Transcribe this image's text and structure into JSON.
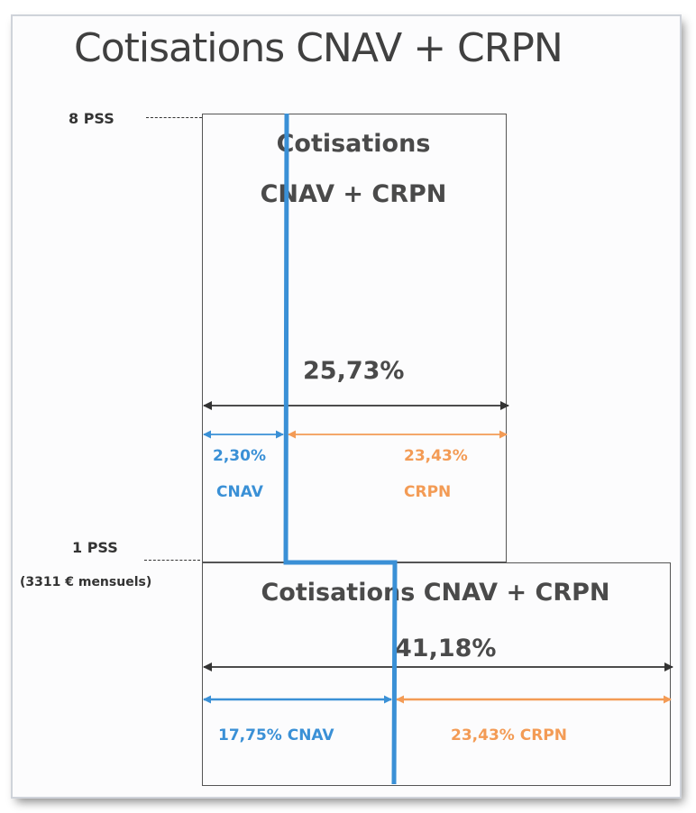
{
  "title": "Cotisations CNAV + CRPN",
  "colors": {
    "cnav": "#3a90d6",
    "crpn": "#f39b55",
    "total": "#333333"
  },
  "levels": {
    "top": {
      "label": "8 PSS"
    },
    "mid": {
      "label": "1 PSS",
      "sublabel": "(3311 € mensuels)"
    }
  },
  "upper_band": {
    "title_line1": "Cotisations",
    "title_line2": "CNAV + CRPN",
    "total_pct": "25,73%",
    "cnav_pct": "2,30%",
    "cnav_label": "CNAV",
    "crpn_pct": "23,43%",
    "crpn_label": "CRPN"
  },
  "lower_band": {
    "title": "Cotisations CNAV + CRPN",
    "total_pct": "41,18%",
    "cnav_text": "17,75%  CNAV",
    "crpn_text": "23,43% CRPN"
  }
}
